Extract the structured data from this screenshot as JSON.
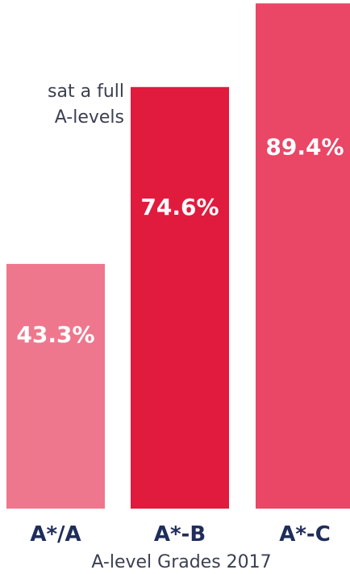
{
  "side_note": {
    "line1": "sat a full",
    "line2": "A-levels"
  },
  "colors": {
    "bar_left": "#ef778d",
    "bar_middle": "#e11b3e",
    "bar_right": "#ea4666",
    "category_label": "#1f2d5a",
    "value_label": "#ffffff",
    "xlabel": "#3b3f52"
  },
  "chart_data": {
    "type": "bar",
    "categories": [
      "A*/A",
      "A*-B",
      "A*-C"
    ],
    "values": [
      43.3,
      74.6,
      89.4
    ],
    "value_labels": [
      "43.3%",
      "74.6%",
      "89.4%"
    ],
    "xlabel": "A-level Grades 2017",
    "ylim": [
      0,
      100
    ],
    "grid": false,
    "legend": "none"
  }
}
